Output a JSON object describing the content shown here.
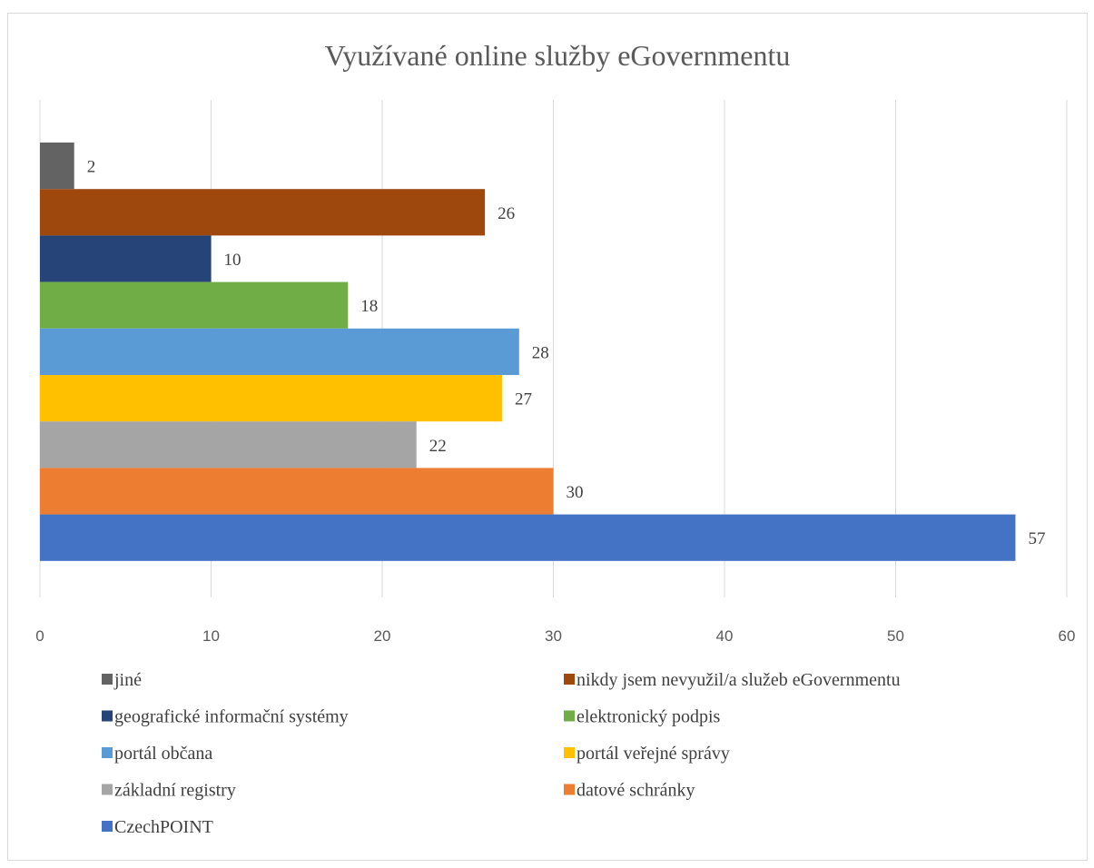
{
  "chart_data": {
    "type": "bar",
    "orientation": "horizontal",
    "title": "Využívané online služby eGovernmentu",
    "xlim": [
      0,
      60
    ],
    "x_ticks": [
      0,
      10,
      20,
      30,
      40,
      50,
      60
    ],
    "grid": true,
    "legend_position": "bottom",
    "series": [
      {
        "name": "jiné",
        "value": 2,
        "color": "#636363"
      },
      {
        "name": "nikdy jsem nevyužil/a služeb eGovernmentu",
        "value": 26,
        "color": "#9E480E"
      },
      {
        "name": "geografické informační systémy",
        "value": 10,
        "color": "#264478"
      },
      {
        "name": "elektronický podpis",
        "value": 18,
        "color": "#70AD47"
      },
      {
        "name": "portál občana",
        "value": 28,
        "color": "#5B9BD5"
      },
      {
        "name": "portál veřejné správy",
        "value": 27,
        "color": "#FFC000"
      },
      {
        "name": "základní registry",
        "value": 22,
        "color": "#A5A5A5"
      },
      {
        "name": "datové schránky",
        "value": 30,
        "color": "#ED7D31"
      },
      {
        "name": "CzechPOINT",
        "value": 57,
        "color": "#4472C4"
      }
    ]
  }
}
